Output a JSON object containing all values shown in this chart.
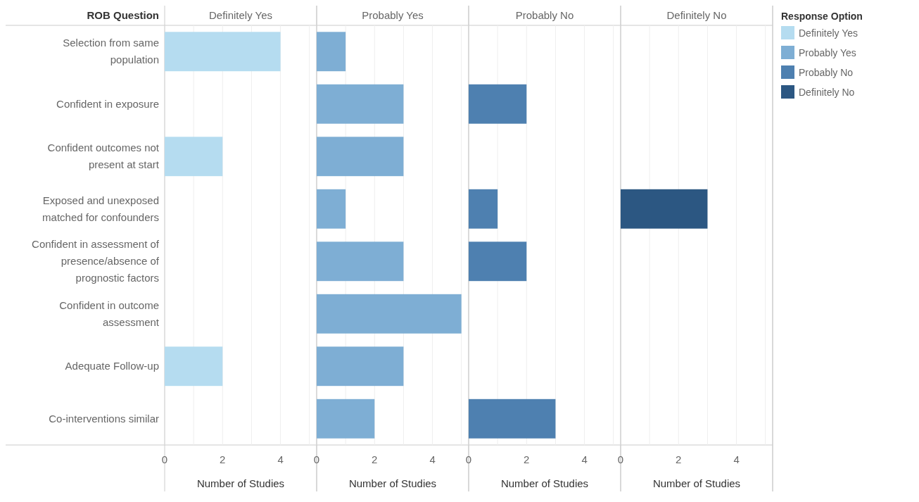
{
  "chart_data": [
    {
      "type": "bar",
      "orientation": "horizontal",
      "title": "Definitely Yes",
      "ylabel": "ROB Question",
      "xlabel": "Number of Studies",
      "categories": [
        "Selection from same population",
        "Confident in exposure",
        "Confident outcomes not present at start",
        "Exposed and unexposed matched for confounders",
        "Confident in assessment of presence/absence of prognostic factors",
        "Confident in outcome assessment",
        "Adequate Follow-up",
        "Co-interventions similar"
      ],
      "series": [
        {
          "name": "Definitely Yes",
          "color": "#b5dcf0",
          "values": [
            4,
            null,
            2,
            null,
            null,
            null,
            2,
            null
          ]
        }
      ],
      "xlim": [
        0,
        5.25
      ],
      "xticks": [
        0,
        {
          "value": 1,
          "label": null
        },
        2,
        {
          "value": 3,
          "label": null
        },
        4,
        {
          "value": 5,
          "label": null
        }
      ],
      "grid": "x"
    },
    {
      "type": "bar",
      "orientation": "horizontal",
      "title": "Probably Yes",
      "xlabel": "Number of Studies",
      "series": [
        {
          "name": "Probably Yes",
          "color": "#7eaed4",
          "values": [
            1,
            3,
            3,
            1,
            3,
            5,
            3,
            2
          ]
        }
      ],
      "xlim": [
        0,
        5.25
      ],
      "xticks": [
        0,
        {
          "value": 1,
          "label": null
        },
        2,
        {
          "value": 3,
          "label": null
        },
        4,
        {
          "value": 5,
          "label": null
        }
      ],
      "grid": "x",
      "tick_labels": "x"
    },
    {
      "type": "bar",
      "orientation": "horizontal",
      "title": "Probably No",
      "xlabel": "Number of Studies",
      "series": [
        {
          "name": "Probably No",
          "color": "#4e80b0",
          "values": [
            null,
            2,
            null,
            1,
            2,
            null,
            null,
            3
          ]
        }
      ],
      "xlim": [
        0,
        5.25
      ],
      "xticks": [
        0,
        {
          "value": 1,
          "label": null
        },
        2,
        {
          "value": 3,
          "label": null
        },
        4,
        {
          "value": 5,
          "label": null
        }
      ],
      "grid": "x",
      "tick_labels": "x"
    },
    {
      "type": "bar",
      "orientation": "horizontal",
      "title": "Definitely No",
      "xlabel": "Number of Studies",
      "series": [
        {
          "name": "Definitely No",
          "color": "#2c5782",
          "values": [
            null,
            null,
            null,
            3,
            null,
            null,
            null,
            null
          ]
        }
      ],
      "xlim": [
        0,
        5.25
      ],
      "xticks": [
        0,
        {
          "value": 1,
          "label": null
        },
        2,
        {
          "value": 3,
          "label": null
        },
        4,
        {
          "value": 5,
          "label": null
        }
      ],
      "grid": "x",
      "tick_labels": "x",
      "legend": "right",
      "legend_title": "Response Option"
    }
  ]
}
